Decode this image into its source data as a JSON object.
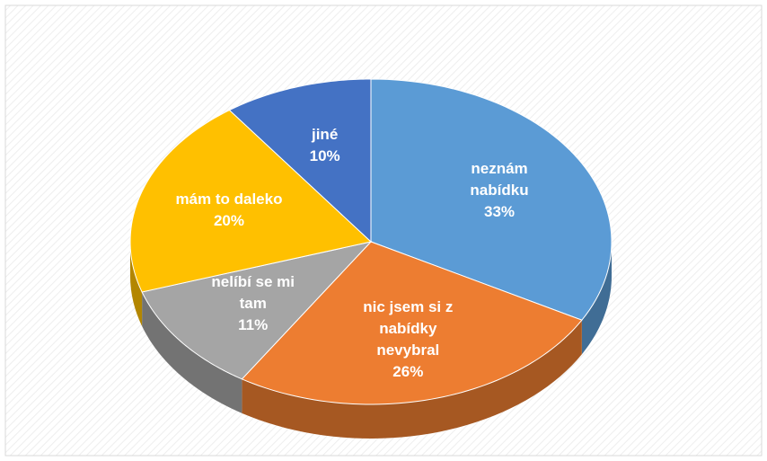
{
  "chart_data": {
    "type": "pie",
    "categories": [
      "neznám nabídku",
      "nic jsem si z nabídky nevybral",
      "nelíbí se mi tam",
      "mám to daleko",
      "jiné"
    ],
    "values": [
      33,
      26,
      11,
      20,
      10
    ],
    "value_labels": [
      "33%",
      "26%",
      "11%",
      "20%",
      "10%"
    ],
    "colors": [
      "#5b9bd5",
      "#ed7d31",
      "#a5a5a5",
      "#ffc000",
      "#4472c4"
    ]
  }
}
